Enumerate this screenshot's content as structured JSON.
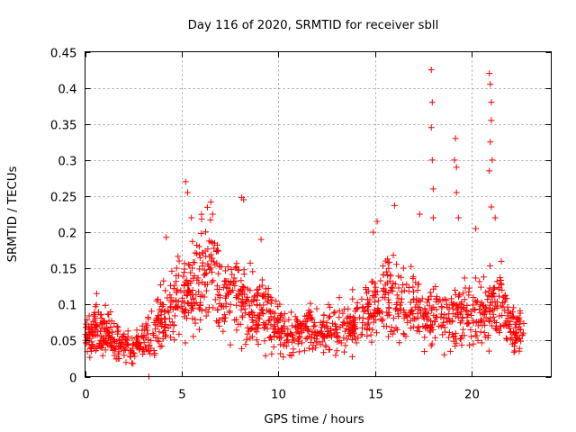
{
  "chart_data": {
    "type": "scatter",
    "title": "Day 116 of 2020, SRMTID for receiver sbll",
    "xlabel": "GPS time / hours",
    "ylabel": "SRMTID / TECUs",
    "xlim": [
      0,
      24.1
    ],
    "ylim": [
      0,
      0.45
    ],
    "xticks": [
      "0",
      "5",
      "10",
      "15",
      "20"
    ],
    "xtick_values": [
      0,
      5,
      10,
      15,
      20
    ],
    "yticks": [
      "0",
      "0.05",
      "0.1",
      "0.15",
      "0.2",
      "0.25",
      "0.3",
      "0.35",
      "0.4",
      "0.45"
    ],
    "ytick_values": [
      0,
      0.05,
      0.1,
      0.15,
      0.2,
      0.25,
      0.3,
      0.35,
      0.4,
      0.45
    ],
    "grid": true,
    "marker": "+",
    "marker_color": "#ff0000",
    "x_range_of_data": [
      0,
      22.7
    ],
    "baseline_profile": {
      "x": [
        0,
        0.5,
        1,
        1.5,
        2,
        2.5,
        3,
        3.5,
        4,
        4.5,
        5,
        5.5,
        6,
        6.5,
        7,
        7.5,
        8,
        8.5,
        9,
        9.5,
        10,
        10.5,
        11,
        11.5,
        12,
        12.5,
        13,
        13.5,
        14,
        14.5,
        15,
        15.5,
        16,
        16.5,
        17,
        17.5,
        18,
        18.5,
        19,
        19.5,
        20,
        20.5,
        21,
        21.5,
        22,
        22.7
      ],
      "y": [
        0.055,
        0.065,
        0.06,
        0.05,
        0.045,
        0.04,
        0.05,
        0.065,
        0.08,
        0.1,
        0.11,
        0.12,
        0.14,
        0.15,
        0.12,
        0.11,
        0.1,
        0.1,
        0.095,
        0.085,
        0.065,
        0.06,
        0.06,
        0.065,
        0.065,
        0.065,
        0.065,
        0.075,
        0.075,
        0.085,
        0.1,
        0.11,
        0.1,
        0.095,
        0.09,
        0.085,
        0.085,
        0.08,
        0.085,
        0.085,
        0.085,
        0.09,
        0.1,
        0.11,
        0.065,
        0.06
      ]
    },
    "spikes": [
      {
        "x": 0.6,
        "y": 0.115
      },
      {
        "x": 3.3,
        "y": 0.0
      },
      {
        "x": 4.2,
        "y": 0.193
      },
      {
        "x": 5.2,
        "y": 0.27
      },
      {
        "x": 5.3,
        "y": 0.255
      },
      {
        "x": 5.5,
        "y": 0.22
      },
      {
        "x": 6.5,
        "y": 0.242
      },
      {
        "x": 6.6,
        "y": 0.225
      },
      {
        "x": 8.1,
        "y": 0.248
      },
      {
        "x": 8.2,
        "y": 0.245
      },
      {
        "x": 9.1,
        "y": 0.19
      },
      {
        "x": 14.9,
        "y": 0.2
      },
      {
        "x": 15.1,
        "y": 0.215
      },
      {
        "x": 16.0,
        "y": 0.237
      },
      {
        "x": 17.3,
        "y": 0.225
      },
      {
        "x": 17.9,
        "y": 0.425
      },
      {
        "x": 17.95,
        "y": 0.38
      },
      {
        "x": 17.9,
        "y": 0.345
      },
      {
        "x": 17.95,
        "y": 0.3
      },
      {
        "x": 18.0,
        "y": 0.26
      },
      {
        "x": 18.0,
        "y": 0.22
      },
      {
        "x": 19.15,
        "y": 0.33
      },
      {
        "x": 19.1,
        "y": 0.3
      },
      {
        "x": 19.2,
        "y": 0.29
      },
      {
        "x": 19.2,
        "y": 0.255
      },
      {
        "x": 19.3,
        "y": 0.22
      },
      {
        "x": 20.2,
        "y": 0.205
      },
      {
        "x": 20.9,
        "y": 0.42
      },
      {
        "x": 20.95,
        "y": 0.405
      },
      {
        "x": 21.0,
        "y": 0.38
      },
      {
        "x": 21.0,
        "y": 0.355
      },
      {
        "x": 20.95,
        "y": 0.325
      },
      {
        "x": 21.05,
        "y": 0.3
      },
      {
        "x": 20.9,
        "y": 0.285
      },
      {
        "x": 21.0,
        "y": 0.235
      },
      {
        "x": 21.2,
        "y": 0.22
      }
    ]
  }
}
